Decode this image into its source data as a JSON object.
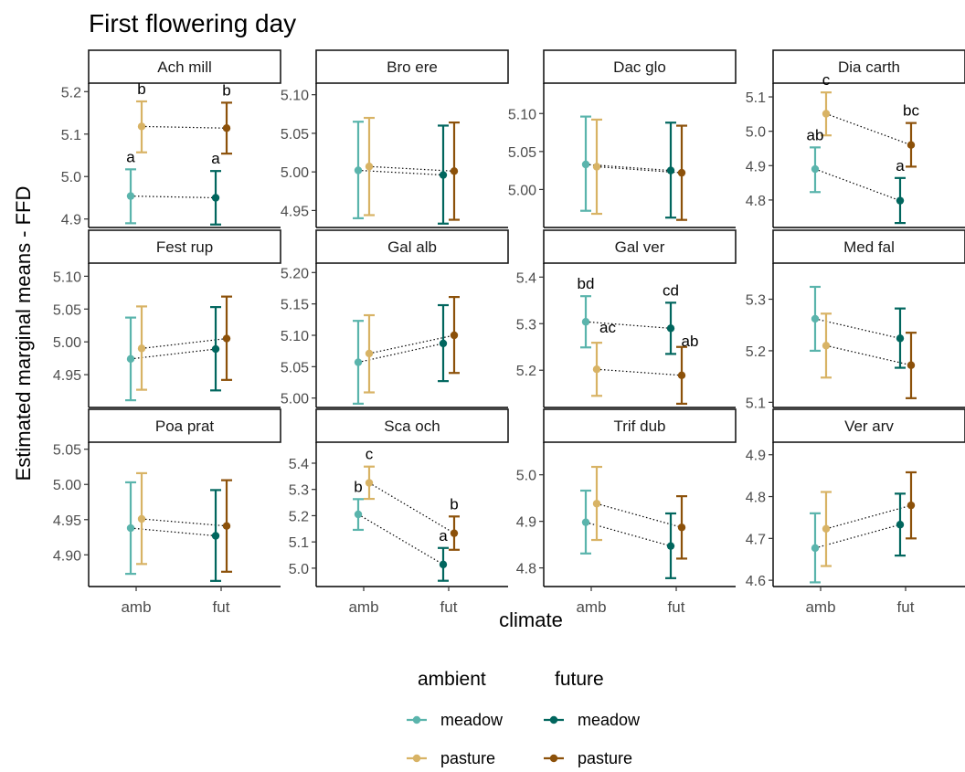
{
  "chart_data": {
    "type": "scatter",
    "title": "First flowering day",
    "ylabel": "Estimated marginal means - FFD",
    "xlabel": "climate",
    "x_categories": [
      "amb",
      "fut"
    ],
    "legend": {
      "placement": "bottom",
      "groups": [
        {
          "title": "ambient",
          "items": [
            {
              "label": "meadow",
              "color": "#5ab4ac"
            },
            {
              "label": "pasture",
              "color": "#d8b365"
            }
          ]
        },
        {
          "title": "future",
          "items": [
            {
              "label": "meadow",
              "color": "#01665e"
            },
            {
              "label": "pasture",
              "color": "#8c510a"
            }
          ]
        }
      ]
    },
    "colors": {
      "amb_meadow": "#5ab4ac",
      "amb_pasture": "#d8b365",
      "fut_meadow": "#01665e",
      "fut_pasture": "#8c510a"
    },
    "panels": [
      {
        "name": "Ach mill",
        "ylim": [
          4.88,
          5.22
        ],
        "ticks": [
          4.9,
          5.0,
          5.1,
          5.2
        ],
        "tick_labels": [
          "4.9",
          "5.0",
          "5.1",
          "5.2"
        ],
        "points": [
          {
            "climate": "amb",
            "management": "meadow",
            "y": 4.954,
            "lo": 4.89,
            "hi": 5.017,
            "label": "a"
          },
          {
            "climate": "amb",
            "management": "pasture",
            "y": 5.118,
            "lo": 5.057,
            "hi": 5.177,
            "label": "b"
          },
          {
            "climate": "fut",
            "management": "meadow",
            "y": 4.95,
            "lo": 4.887,
            "hi": 5.013,
            "label": "a"
          },
          {
            "climate": "fut",
            "management": "pasture",
            "y": 5.114,
            "lo": 5.054,
            "hi": 5.174,
            "label": "b"
          }
        ]
      },
      {
        "name": "Bro ere",
        "ylim": [
          4.928,
          5.115
        ],
        "ticks": [
          4.95,
          5.0,
          5.05,
          5.1
        ],
        "tick_labels": [
          "4.95",
          "5.00",
          "5.05",
          "5.10"
        ],
        "points": [
          {
            "climate": "amb",
            "management": "meadow",
            "y": 5.002,
            "lo": 4.94,
            "hi": 5.065,
            "label": ""
          },
          {
            "climate": "amb",
            "management": "pasture",
            "y": 5.007,
            "lo": 4.944,
            "hi": 5.07,
            "label": ""
          },
          {
            "climate": "fut",
            "management": "meadow",
            "y": 4.996,
            "lo": 4.933,
            "hi": 5.06,
            "label": ""
          },
          {
            "climate": "fut",
            "management": "pasture",
            "y": 5.001,
            "lo": 4.938,
            "hi": 5.064,
            "label": ""
          }
        ]
      },
      {
        "name": "Dac glo",
        "ylim": [
          4.95,
          5.14
        ],
        "ticks": [
          5.0,
          5.05,
          5.1
        ],
        "tick_labels": [
          "5.00",
          "5.05",
          "5.10"
        ],
        "points": [
          {
            "climate": "amb",
            "management": "meadow",
            "y": 5.033,
            "lo": 4.972,
            "hi": 5.096,
            "label": ""
          },
          {
            "climate": "amb",
            "management": "pasture",
            "y": 5.03,
            "lo": 4.968,
            "hi": 5.092,
            "label": ""
          },
          {
            "climate": "fut",
            "management": "meadow",
            "y": 5.025,
            "lo": 4.963,
            "hi": 5.088,
            "label": ""
          },
          {
            "climate": "fut",
            "management": "pasture",
            "y": 5.022,
            "lo": 4.96,
            "hi": 5.084,
            "label": ""
          }
        ]
      },
      {
        "name": "Dia carth",
        "ylim": [
          4.72,
          5.14
        ],
        "ticks": [
          4.8,
          4.9,
          5.0,
          5.1
        ],
        "tick_labels": [
          "4.8",
          "4.9",
          "5.0",
          "5.1"
        ],
        "points": [
          {
            "climate": "amb",
            "management": "meadow",
            "y": 4.89,
            "lo": 4.823,
            "hi": 4.953,
            "label": "ab"
          },
          {
            "climate": "amb",
            "management": "pasture",
            "y": 5.051,
            "lo": 4.988,
            "hi": 5.113,
            "label": "c"
          },
          {
            "climate": "fut",
            "management": "meadow",
            "y": 4.798,
            "lo": 4.733,
            "hi": 4.864,
            "label": "a"
          },
          {
            "climate": "fut",
            "management": "pasture",
            "y": 4.96,
            "lo": 4.897,
            "hi": 5.024,
            "label": "bc"
          }
        ]
      },
      {
        "name": "Fest rup",
        "ylim": [
          4.9,
          5.12
        ],
        "ticks": [
          4.95,
          5.0,
          5.05,
          5.1
        ],
        "tick_labels": [
          "4.95",
          "5.00",
          "5.05",
          "5.10"
        ],
        "points": [
          {
            "climate": "amb",
            "management": "meadow",
            "y": 4.974,
            "lo": 4.911,
            "hi": 5.037,
            "label": ""
          },
          {
            "climate": "amb",
            "management": "pasture",
            "y": 4.99,
            "lo": 4.927,
            "hi": 5.054,
            "label": ""
          },
          {
            "climate": "fut",
            "management": "meadow",
            "y": 4.989,
            "lo": 4.926,
            "hi": 5.053,
            "label": ""
          },
          {
            "climate": "fut",
            "management": "pasture",
            "y": 5.005,
            "lo": 4.942,
            "hi": 5.069,
            "label": ""
          }
        ]
      },
      {
        "name": "Gal alb",
        "ylim": [
          4.985,
          5.215
        ],
        "ticks": [
          5.0,
          5.05,
          5.1,
          5.15,
          5.2
        ],
        "tick_labels": [
          "5.00",
          "5.05",
          "5.10",
          "5.15",
          "5.20"
        ],
        "points": [
          {
            "climate": "amb",
            "management": "meadow",
            "y": 5.057,
            "lo": 4.991,
            "hi": 5.123,
            "label": ""
          },
          {
            "climate": "amb",
            "management": "pasture",
            "y": 5.071,
            "lo": 5.009,
            "hi": 5.132,
            "label": ""
          },
          {
            "climate": "fut",
            "management": "meadow",
            "y": 5.087,
            "lo": 5.027,
            "hi": 5.148,
            "label": ""
          },
          {
            "climate": "fut",
            "management": "pasture",
            "y": 5.1,
            "lo": 5.04,
            "hi": 5.161,
            "label": ""
          }
        ]
      },
      {
        "name": "Gal ver",
        "ylim": [
          5.12,
          5.43
        ],
        "ticks": [
          5.2,
          5.3,
          5.4
        ],
        "tick_labels": [
          "5.2",
          "5.3",
          "5.4"
        ],
        "points": [
          {
            "climate": "amb",
            "management": "meadow",
            "y": 5.304,
            "lo": 5.249,
            "hi": 5.359,
            "label": "bd"
          },
          {
            "climate": "amb",
            "management": "pasture",
            "y": 5.202,
            "lo": 5.145,
            "hi": 5.259,
            "label": "ac"
          },
          {
            "climate": "fut",
            "management": "meadow",
            "y": 5.29,
            "lo": 5.235,
            "hi": 5.345,
            "label": "cd"
          },
          {
            "climate": "fut",
            "management": "pasture",
            "y": 5.189,
            "lo": 5.128,
            "hi": 5.25,
            "label": "ab"
          }
        ]
      },
      {
        "name": "Med fal",
        "ylim": [
          5.09,
          5.37
        ],
        "ticks": [
          5.1,
          5.2,
          5.3
        ],
        "tick_labels": [
          "5.1",
          "5.2",
          "5.3"
        ],
        "points": [
          {
            "climate": "amb",
            "management": "meadow",
            "y": 5.262,
            "lo": 5.2,
            "hi": 5.324,
            "label": ""
          },
          {
            "climate": "amb",
            "management": "pasture",
            "y": 5.21,
            "lo": 5.148,
            "hi": 5.272,
            "label": ""
          },
          {
            "climate": "fut",
            "management": "meadow",
            "y": 5.224,
            "lo": 5.167,
            "hi": 5.282,
            "label": ""
          },
          {
            "climate": "fut",
            "management": "pasture",
            "y": 5.172,
            "lo": 5.108,
            "hi": 5.235,
            "label": ""
          }
        ]
      },
      {
        "name": "Poa prat",
        "ylim": [
          4.855,
          5.06
        ],
        "ticks": [
          4.9,
          4.95,
          5.0,
          5.05
        ],
        "tick_labels": [
          "4.90",
          "4.95",
          "5.00",
          "5.05"
        ],
        "points": [
          {
            "climate": "amb",
            "management": "meadow",
            "y": 4.938,
            "lo": 4.873,
            "hi": 5.003,
            "label": ""
          },
          {
            "climate": "amb",
            "management": "pasture",
            "y": 4.951,
            "lo": 4.887,
            "hi": 5.016,
            "label": ""
          },
          {
            "climate": "fut",
            "management": "meadow",
            "y": 4.927,
            "lo": 4.863,
            "hi": 4.992,
            "label": ""
          },
          {
            "climate": "fut",
            "management": "pasture",
            "y": 4.941,
            "lo": 4.876,
            "hi": 5.006,
            "label": ""
          }
        ]
      },
      {
        "name": "Sca och",
        "ylim": [
          4.93,
          5.48
        ],
        "ticks": [
          5.0,
          5.1,
          5.2,
          5.3,
          5.4
        ],
        "tick_labels": [
          "5.0",
          "5.1",
          "5.2",
          "5.3",
          "5.4"
        ],
        "points": [
          {
            "climate": "amb",
            "management": "meadow",
            "y": 5.205,
            "lo": 5.146,
            "hi": 5.263,
            "label": "b"
          },
          {
            "climate": "amb",
            "management": "pasture",
            "y": 5.325,
            "lo": 5.264,
            "hi": 5.387,
            "label": "c"
          },
          {
            "climate": "fut",
            "management": "meadow",
            "y": 5.014,
            "lo": 4.952,
            "hi": 5.077,
            "label": "a"
          },
          {
            "climate": "fut",
            "management": "pasture",
            "y": 5.133,
            "lo": 5.07,
            "hi": 5.197,
            "label": "b"
          }
        ]
      },
      {
        "name": "Trif dub",
        "ylim": [
          4.76,
          5.07
        ],
        "ticks": [
          4.8,
          4.9,
          5.0
        ],
        "tick_labels": [
          "4.8",
          "4.9",
          "5.0"
        ],
        "points": [
          {
            "climate": "amb",
            "management": "meadow",
            "y": 4.898,
            "lo": 4.831,
            "hi": 4.966,
            "label": ""
          },
          {
            "climate": "amb",
            "management": "pasture",
            "y": 4.938,
            "lo": 4.86,
            "hi": 5.017,
            "label": ""
          },
          {
            "climate": "fut",
            "management": "meadow",
            "y": 4.847,
            "lo": 4.778,
            "hi": 4.917,
            "label": ""
          },
          {
            "climate": "fut",
            "management": "pasture",
            "y": 4.887,
            "lo": 4.82,
            "hi": 4.954,
            "label": ""
          }
        ]
      },
      {
        "name": "Ver arv",
        "ylim": [
          4.585,
          4.93
        ],
        "ticks": [
          4.6,
          4.7,
          4.8,
          4.9
        ],
        "tick_labels": [
          "4.6",
          "4.7",
          "4.8",
          "4.9"
        ],
        "points": [
          {
            "climate": "amb",
            "management": "meadow",
            "y": 4.677,
            "lo": 4.595,
            "hi": 4.76,
            "label": ""
          },
          {
            "climate": "amb",
            "management": "pasture",
            "y": 4.723,
            "lo": 4.634,
            "hi": 4.811,
            "label": ""
          },
          {
            "climate": "fut",
            "management": "meadow",
            "y": 4.733,
            "lo": 4.659,
            "hi": 4.807,
            "label": ""
          },
          {
            "climate": "fut",
            "management": "pasture",
            "y": 4.779,
            "lo": 4.7,
            "hi": 4.858,
            "label": ""
          }
        ]
      }
    ]
  }
}
